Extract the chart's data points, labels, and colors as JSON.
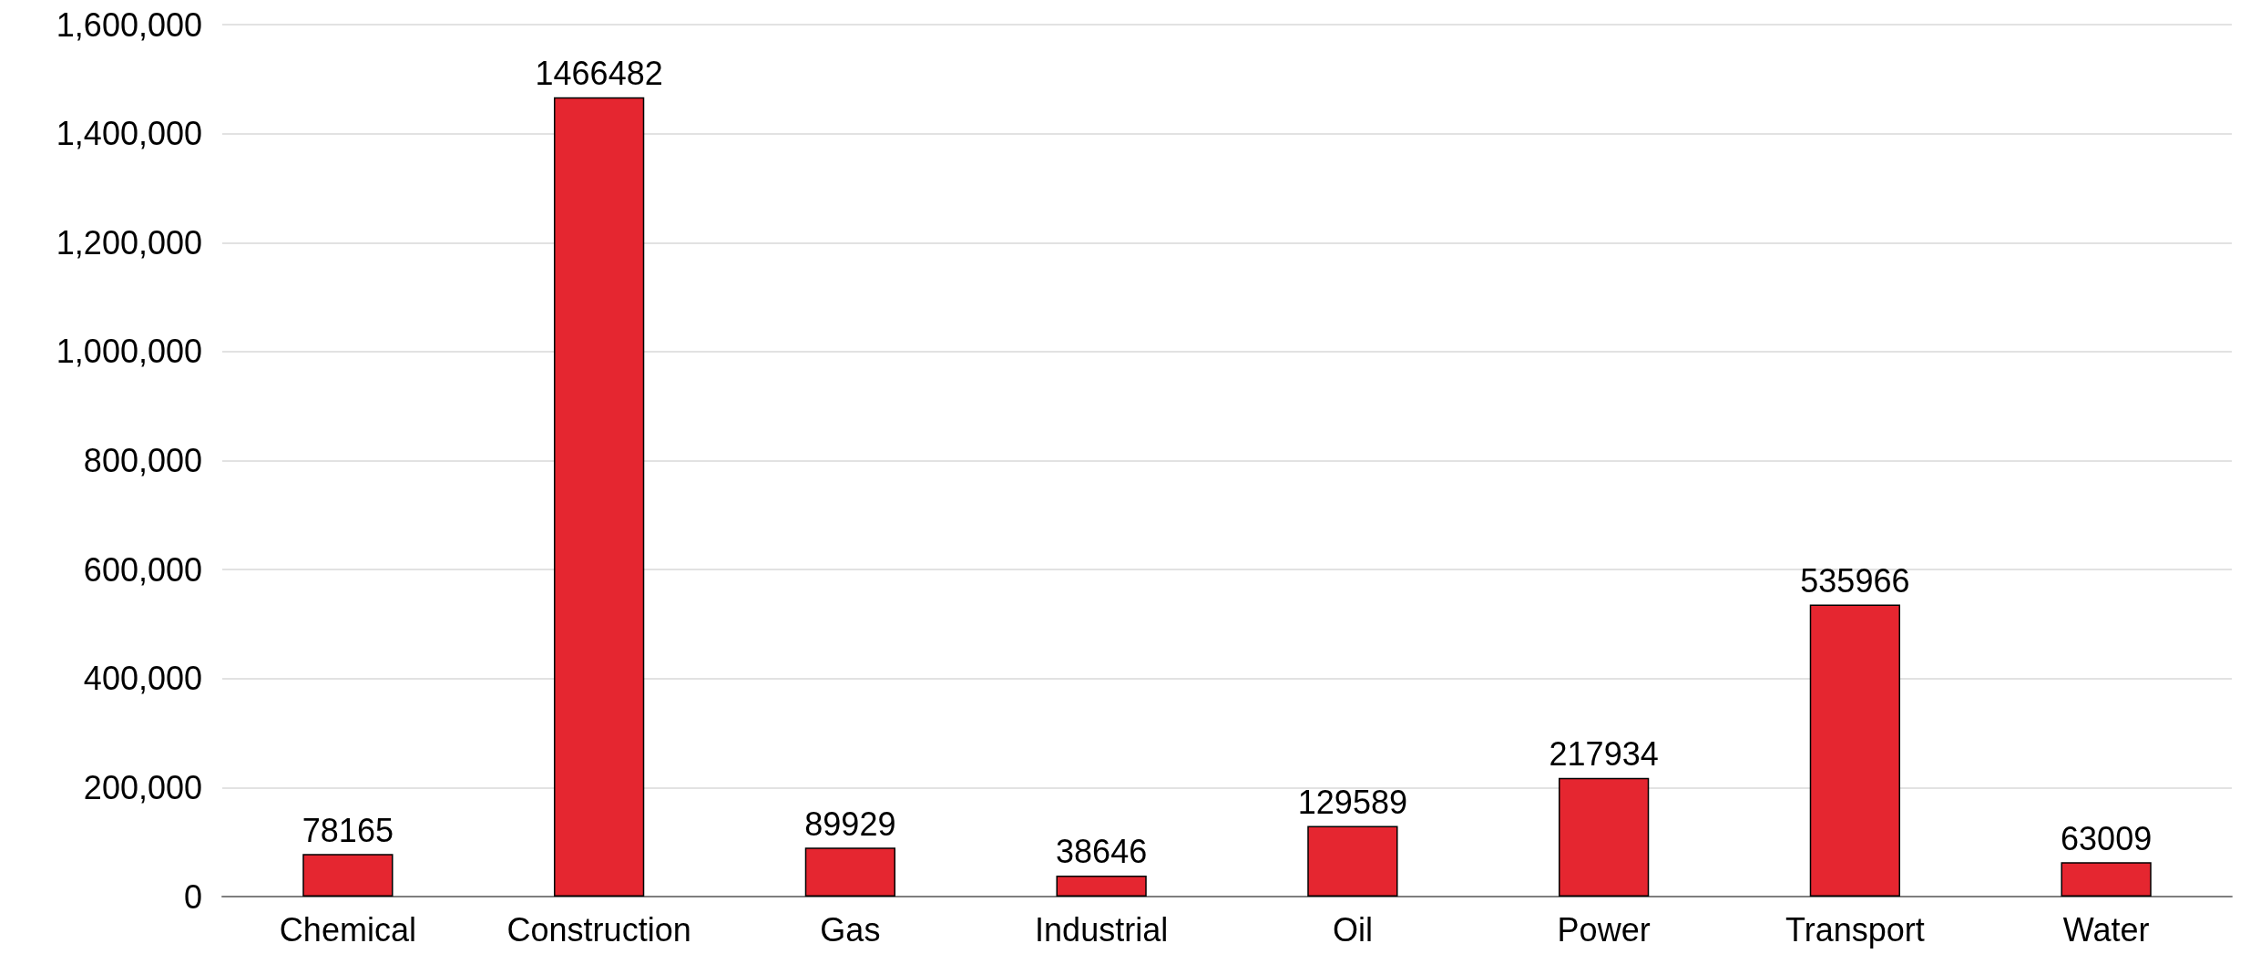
{
  "chart_data": {
    "type": "bar",
    "categories": [
      "Chemical",
      "Construction",
      "Gas",
      "Industrial",
      "Oil",
      "Power",
      "Transport",
      "Water"
    ],
    "values": [
      78165,
      1466482,
      89929,
      38646,
      129589,
      217934,
      535966,
      63009
    ],
    "color": "#e52630",
    "data_labels": true,
    "grid": "y",
    "ylim": [
      0,
      1600000
    ],
    "yticks": [
      {
        "value": 0,
        "label": "0"
      },
      {
        "value": 200000,
        "label": "200,000"
      },
      {
        "value": 400000,
        "label": "400,000"
      },
      {
        "value": 600000,
        "label": "600,000"
      },
      {
        "value": 800000,
        "label": "800,000"
      },
      {
        "value": 1000000,
        "label": "1,000,000"
      },
      {
        "value": 1200000,
        "label": "1,200,000"
      },
      {
        "value": 1400000,
        "label": "1,400,000"
      },
      {
        "value": 1600000,
        "label": "1,600,000"
      }
    ]
  }
}
